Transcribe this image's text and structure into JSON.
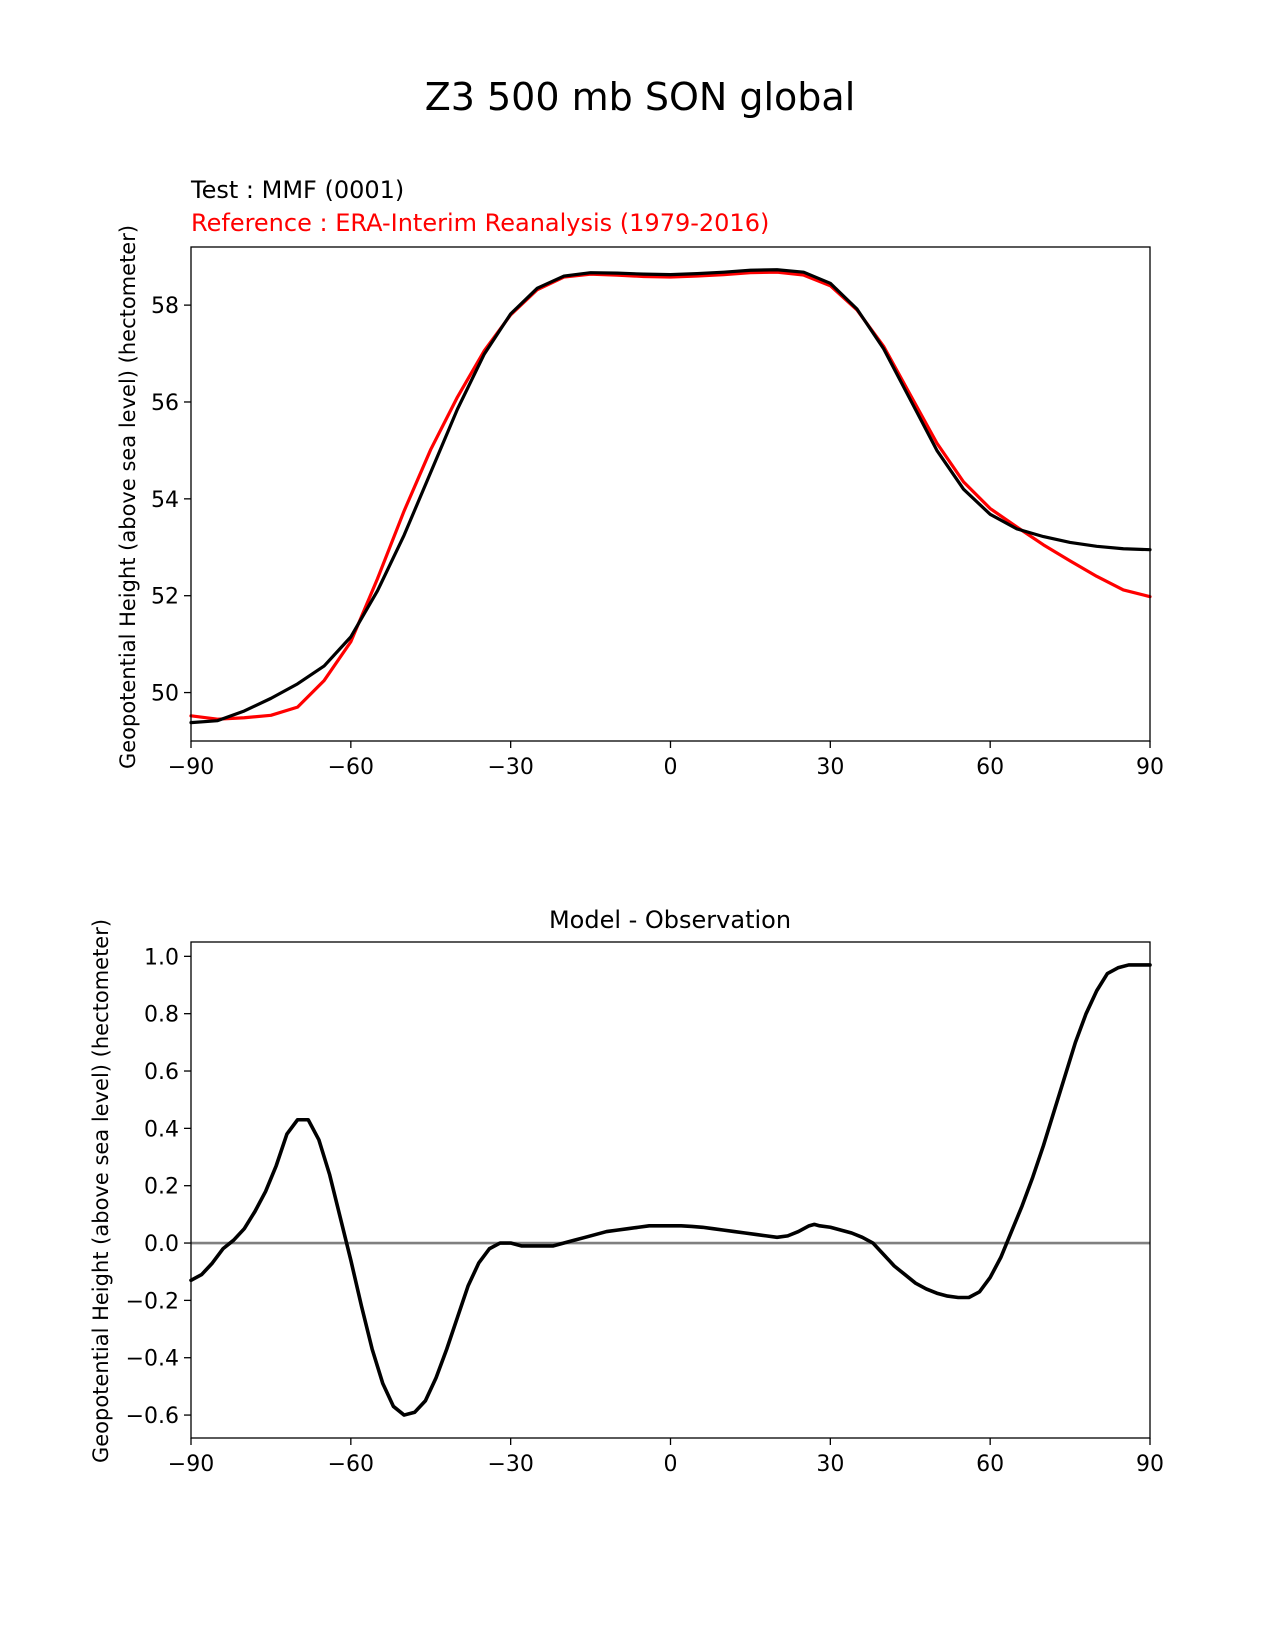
{
  "figure": {
    "title": "Z3 500 mb SON global"
  },
  "chart_data": [
    {
      "type": "line",
      "test_label": "Test : MMF (0001)",
      "reference_label": "Reference : ERA-Interim Reanalysis (1979-2016)",
      "ylabel": "Geopotential Height (above sea level) (hectometer)",
      "xlabel": "",
      "xlim": [
        -90,
        90
      ],
      "ylim": [
        49.0,
        59.2
      ],
      "xticks": [
        -90,
        -60,
        -30,
        0,
        30,
        60,
        90
      ],
      "xtick_labels": [
        "−90",
        "−60",
        "−30",
        "0",
        "30",
        "60",
        "90"
      ],
      "yticks": [
        50,
        52,
        54,
        56,
        58
      ],
      "ytick_labels": [
        "50",
        "52",
        "54",
        "56",
        "58"
      ],
      "grid": false,
      "colors": {
        "test": "#000000",
        "reference": "#ff0000"
      },
      "series": [
        {
          "name": "Test : MMF (0001)",
          "color": "#000000",
          "x": [
            -90,
            -85,
            -80,
            -75,
            -70,
            -65,
            -60,
            -55,
            -50,
            -45,
            -40,
            -35,
            -30,
            -25,
            -20,
            -15,
            -10,
            -5,
            0,
            5,
            10,
            15,
            20,
            25,
            30,
            35,
            40,
            45,
            50,
            55,
            60,
            65,
            70,
            75,
            80,
            85,
            90
          ],
          "y": [
            49.38,
            49.42,
            49.62,
            49.88,
            50.18,
            50.55,
            51.15,
            52.1,
            53.25,
            54.55,
            55.85,
            56.98,
            57.82,
            58.35,
            58.6,
            58.67,
            58.66,
            58.64,
            58.63,
            58.65,
            58.68,
            58.72,
            58.73,
            58.68,
            58.45,
            57.92,
            57.1,
            56.05,
            55.0,
            54.2,
            53.68,
            53.38,
            53.22,
            53.1,
            53.02,
            52.97,
            52.95
          ]
        },
        {
          "name": "Reference : ERA-Interim Reanalysis (1979-2016)",
          "color": "#ff0000",
          "x": [
            -90,
            -85,
            -80,
            -75,
            -70,
            -65,
            -60,
            -55,
            -50,
            -45,
            -40,
            -35,
            -30,
            -25,
            -20,
            -15,
            -10,
            -5,
            0,
            5,
            10,
            15,
            20,
            25,
            30,
            35,
            40,
            45,
            50,
            55,
            60,
            65,
            70,
            75,
            80,
            85,
            90
          ],
          "y": [
            49.52,
            49.45,
            49.48,
            49.53,
            49.7,
            50.25,
            51.05,
            52.35,
            53.75,
            55.02,
            56.1,
            57.05,
            57.8,
            58.32,
            58.58,
            58.64,
            58.62,
            58.59,
            58.58,
            58.6,
            58.63,
            58.67,
            58.68,
            58.62,
            58.4,
            57.9,
            57.15,
            56.15,
            55.15,
            54.35,
            53.8,
            53.42,
            53.05,
            52.72,
            52.4,
            52.12,
            51.98
          ]
        }
      ]
    },
    {
      "type": "line",
      "title": "Model - Observation",
      "ylabel": "Geopotential Height (above sea level) (hectometer)",
      "xlabel": "",
      "xlim": [
        -90,
        90
      ],
      "ylim": [
        -0.68,
        1.05
      ],
      "xticks": [
        -90,
        -60,
        -30,
        0,
        30,
        60,
        90
      ],
      "xtick_labels": [
        "−90",
        "−60",
        "−30",
        "0",
        "30",
        "60",
        "90"
      ],
      "yticks": [
        -0.6,
        -0.4,
        -0.2,
        0.0,
        0.2,
        0.4,
        0.6,
        0.8,
        1.0
      ],
      "ytick_labels": [
        "−0.6",
        "−0.4",
        "−0.2",
        "0.0",
        "0.2",
        "0.4",
        "0.6",
        "0.8",
        "1.0"
      ],
      "grid": false,
      "zero_line_color": "#808080",
      "series": [
        {
          "color": "#000000",
          "x": [
            -90,
            -88,
            -86,
            -84,
            -82,
            -80,
            -78,
            -76,
            -74,
            -72,
            -70,
            -68,
            -66,
            -64,
            -62,
            -60,
            -58,
            -56,
            -54,
            -52,
            -50,
            -48,
            -46,
            -44,
            -42,
            -40,
            -38,
            -36,
            -34,
            -32,
            -30,
            -28,
            -26,
            -24,
            -22,
            -20,
            -18,
            -16,
            -14,
            -12,
            -10,
            -8,
            -6,
            -4,
            -2,
            0,
            2,
            4,
            6,
            8,
            10,
            12,
            14,
            16,
            18,
            20,
            22,
            24,
            26,
            27,
            28,
            30,
            32,
            34,
            36,
            38,
            40,
            42,
            44,
            46,
            48,
            50,
            52,
            54,
            56,
            58,
            60,
            62,
            64,
            66,
            68,
            70,
            72,
            74,
            76,
            78,
            80,
            82,
            84,
            86,
            88,
            90
          ],
          "y": [
            -0.13,
            -0.11,
            -0.07,
            -0.02,
            0.01,
            0.05,
            0.11,
            0.18,
            0.27,
            0.38,
            0.43,
            0.43,
            0.36,
            0.24,
            0.09,
            -0.06,
            -0.22,
            -0.37,
            -0.49,
            -0.57,
            -0.6,
            -0.59,
            -0.55,
            -0.47,
            -0.37,
            -0.26,
            -0.15,
            -0.07,
            -0.02,
            0.0,
            0.0,
            -0.01,
            -0.01,
            -0.01,
            -0.01,
            0.0,
            0.01,
            0.02,
            0.03,
            0.04,
            0.045,
            0.05,
            0.055,
            0.06,
            0.06,
            0.06,
            0.06,
            0.058,
            0.055,
            0.05,
            0.045,
            0.04,
            0.035,
            0.03,
            0.025,
            0.02,
            0.025,
            0.04,
            0.06,
            0.065,
            0.06,
            0.055,
            0.045,
            0.035,
            0.02,
            0.0,
            -0.04,
            -0.08,
            -0.11,
            -0.14,
            -0.16,
            -0.175,
            -0.185,
            -0.19,
            -0.19,
            -0.17,
            -0.12,
            -0.05,
            0.04,
            0.13,
            0.23,
            0.34,
            0.46,
            0.58,
            0.7,
            0.8,
            0.88,
            0.94,
            0.96,
            0.97,
            0.97,
            0.97
          ]
        }
      ]
    }
  ]
}
